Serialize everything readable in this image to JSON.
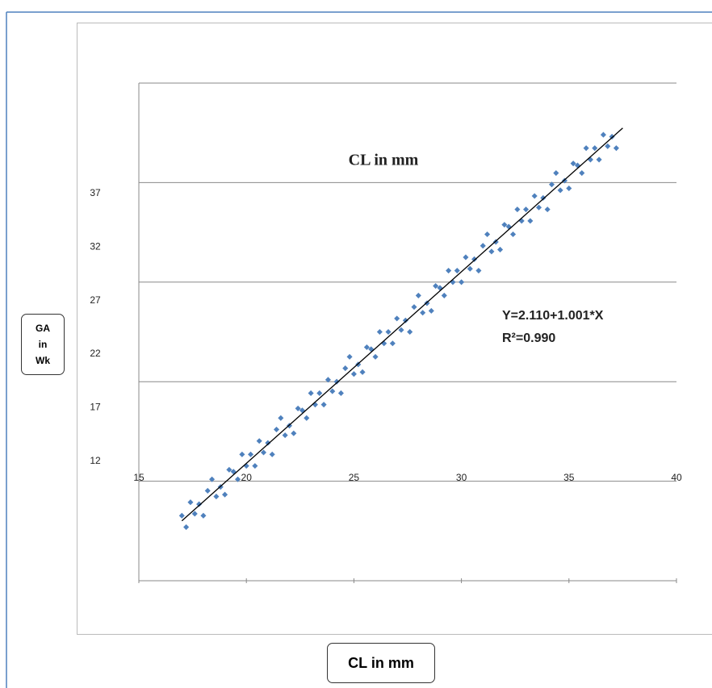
{
  "chart_data": {
    "type": "scatter",
    "title": "CL in mm",
    "x_label": "CL  in mm",
    "y_label": "GA in Wk",
    "annotations": [
      "Y=2.110+1.001*X",
      "R²=0.990"
    ],
    "color": "#4f81bd",
    "xlim": [
      15,
      40
    ],
    "xticks": [
      15,
      20,
      25,
      30,
      35,
      40
    ],
    "ylim": [
      0.85,
      47.3
    ],
    "yticks": [
      12,
      17,
      22,
      27,
      32,
      37
    ],
    "y2lim": [
      16,
      42
    ],
    "y2ticks": [
      16,
      21.2,
      26.4,
      31.6,
      36.8,
      42
    ],
    "grid": true,
    "x": [
      17.0,
      17.2,
      17.4,
      17.6,
      17.8,
      18.0,
      18.2,
      18.4,
      18.6,
      18.8,
      19.0,
      19.2,
      19.4,
      19.6,
      19.8,
      20.0,
      20.2,
      20.4,
      20.6,
      20.8,
      21.0,
      21.2,
      21.4,
      21.6,
      21.8,
      22.0,
      22.2,
      22.4,
      22.6,
      22.8,
      23.0,
      23.2,
      23.4,
      23.6,
      23.8,
      24.0,
      24.2,
      24.4,
      24.6,
      24.8,
      25.0,
      25.2,
      25.4,
      25.6,
      25.8,
      26.0,
      26.2,
      26.4,
      26.6,
      26.8,
      27.0,
      27.2,
      27.4,
      27.6,
      27.8,
      28.0,
      28.2,
      28.4,
      28.6,
      28.8,
      29.0,
      29.2,
      29.4,
      29.6,
      29.8,
      30.0,
      30.2,
      30.4,
      30.6,
      30.8,
      31.0,
      31.2,
      31.4,
      31.6,
      31.8,
      32.0,
      32.2,
      32.4,
      32.6,
      32.8,
      33.0,
      33.2,
      33.4,
      33.6,
      33.8,
      34.0,
      34.2,
      34.4,
      34.6,
      34.8,
      35.0,
      35.2,
      35.4,
      35.6,
      35.8,
      36.0,
      36.2,
      36.4,
      36.6,
      36.8,
      37.0,
      37.2
    ],
    "series": [
      {
        "name": "GA",
        "axis": "y2",
        "color": "#4f81bd",
        "values": [
          19.4,
          18.8,
          20.1,
          19.5,
          20.0,
          19.4,
          20.7,
          21.3,
          20.4,
          20.9,
          20.5,
          21.8,
          21.7,
          21.3,
          22.6,
          22.0,
          22.6,
          22.0,
          23.3,
          22.7,
          23.2,
          22.6,
          23.9,
          24.5,
          23.6,
          24.1,
          23.7,
          25.0,
          24.9,
          24.5,
          25.8,
          25.2,
          25.8,
          25.2,
          26.5,
          25.9,
          26.4,
          25.8,
          27.1,
          27.7,
          26.8,
          27.3,
          26.9,
          28.2,
          28.1,
          27.7,
          29.0,
          28.4,
          29.0,
          28.4,
          29.7,
          29.1,
          29.6,
          29.0,
          30.3,
          30.9,
          30.0,
          30.5,
          30.1,
          31.4,
          31.3,
          30.9,
          32.2,
          31.6,
          32.2,
          31.6,
          32.9,
          32.3,
          32.8,
          32.2,
          33.5,
          34.1,
          33.2,
          33.7,
          33.3,
          34.6,
          34.5,
          34.1,
          35.4,
          34.8,
          35.4,
          34.8,
          36.1,
          35.5,
          36.0,
          35.4,
          36.7,
          37.3,
          36.4,
          36.9,
          36.5,
          37.8,
          37.7,
          37.3,
          38.6,
          38.0,
          38.6,
          38.0,
          39.3,
          38.7,
          39.2,
          38.6
        ]
      }
    ],
    "trendline": {
      "x": [
        17,
        37.5
      ],
      "y": [
        19.13,
        39.65
      ]
    }
  }
}
